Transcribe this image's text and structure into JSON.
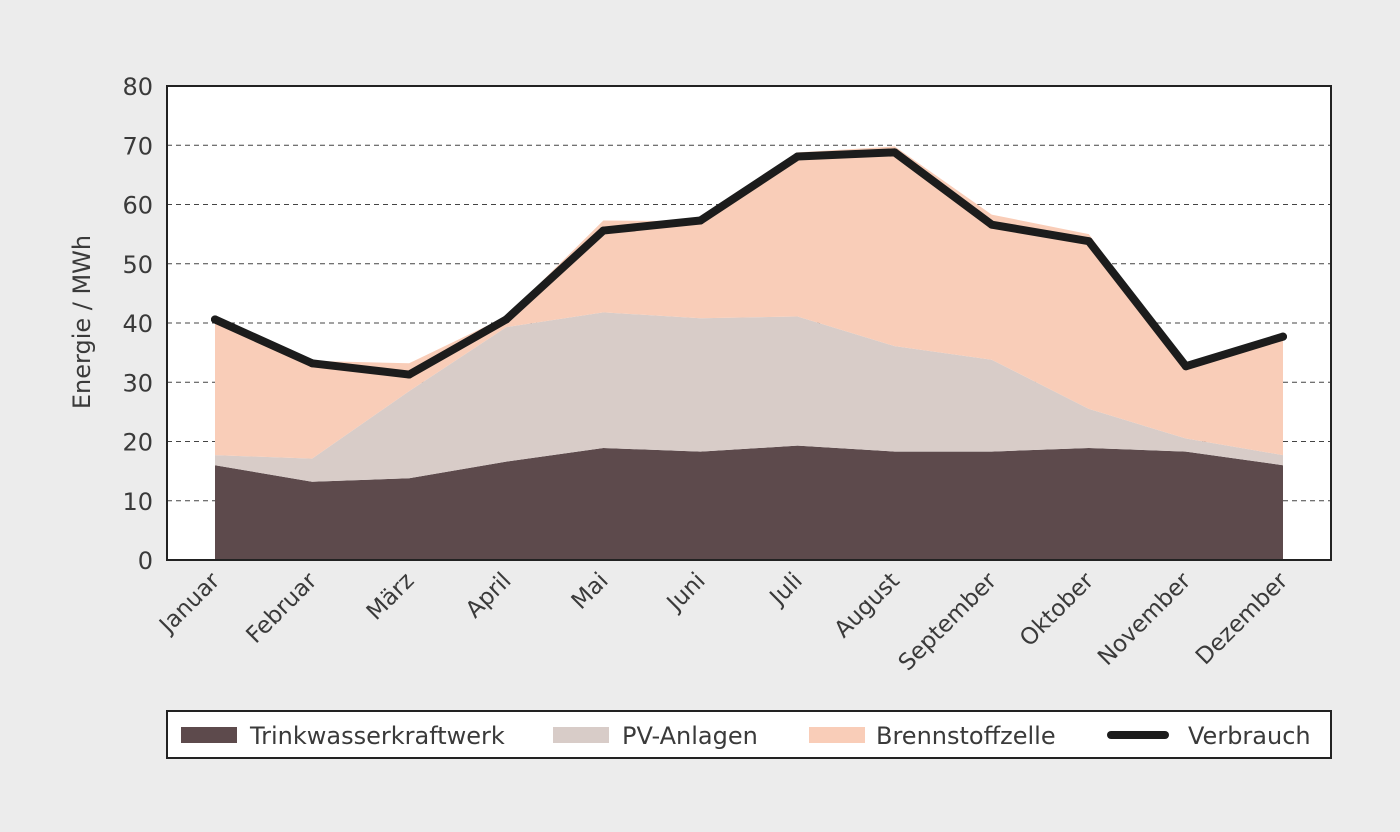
{
  "chart_data": {
    "type": "area",
    "stacked": true,
    "title": "",
    "xlabel": "",
    "ylabel": "Energie / MWh",
    "ylim": [
      0,
      80
    ],
    "yticks": [
      "0",
      "10",
      "20",
      "30",
      "40",
      "50",
      "60",
      "70",
      "80"
    ],
    "grid": "horizontal-dashed",
    "legend_position": "bottom",
    "categories": [
      "Januar",
      "Februar",
      "März",
      "April",
      "Mai",
      "Juni",
      "Juli",
      "August",
      "September",
      "Oktober",
      "November",
      "Dezember"
    ],
    "series": [
      {
        "name": "Trinkwasserkraftwerk",
        "kind": "area",
        "color": "#5d4a4c",
        "values": [
          16,
          13.2,
          13.8,
          16.6,
          18.9,
          18.3,
          19.3,
          18.3,
          18.3,
          18.9,
          18.3,
          16
        ]
      },
      {
        "name": "PV-Anlagen",
        "kind": "area",
        "color": "#d8ccc8",
        "values": [
          1.7,
          3.9,
          14.7,
          22.7,
          22.9,
          22.5,
          21.8,
          17.8,
          15.5,
          6.6,
          2.2,
          1.7
        ]
      },
      {
        "name": "Brennstoffzelle",
        "kind": "area",
        "color": "#f9cdb8",
        "values": [
          22.8,
          16.5,
          4.7,
          1.8,
          15.5,
          16.4,
          27.7,
          33.7,
          24.5,
          29.5,
          12.5,
          20.5
        ]
      },
      {
        "name": "Verbrauch",
        "kind": "line",
        "color": "#1c1c1c",
        "values": [
          40.6,
          33.2,
          31.3,
          40.6,
          55.6,
          57.3,
          68.1,
          68.8,
          56.6,
          53.8,
          32.7,
          37.7
        ]
      }
    ]
  }
}
